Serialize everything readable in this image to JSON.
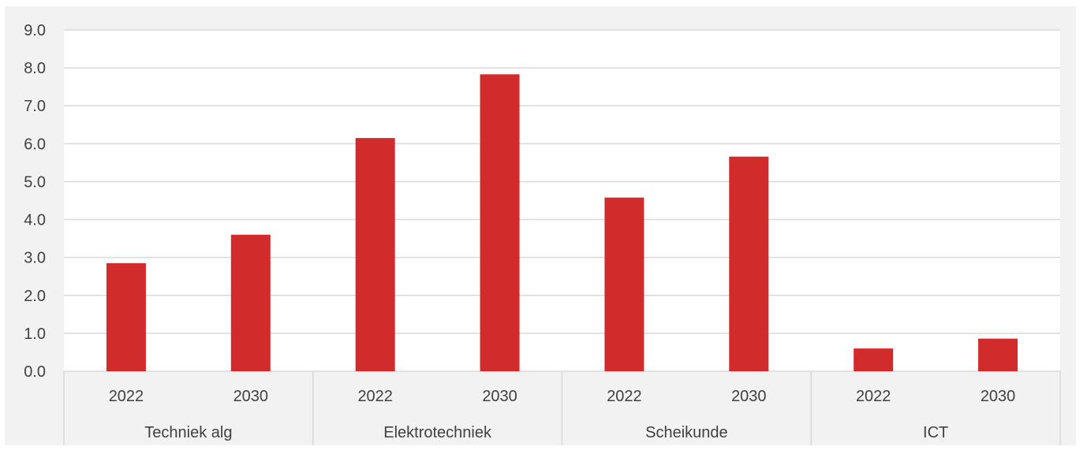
{
  "colors": {
    "background": "#f2f2f2",
    "plot_background": "#ffffff",
    "bar": "#d22b2b",
    "grid": "#d9d9d9",
    "text": "#404040"
  },
  "chart_data": {
    "type": "bar",
    "groups": [
      {
        "name": "Techniek alg",
        "categories": [
          "2022",
          "2030"
        ],
        "values": [
          2.85,
          3.6
        ]
      },
      {
        "name": "Elektrotechniek",
        "categories": [
          "2022",
          "2030"
        ],
        "values": [
          6.15,
          7.83
        ]
      },
      {
        "name": "Scheikunde",
        "categories": [
          "2022",
          "2030"
        ],
        "values": [
          4.58,
          5.66
        ]
      },
      {
        "name": "ICT",
        "categories": [
          "2022",
          "2030"
        ],
        "values": [
          0.6,
          0.86
        ]
      }
    ],
    "yticks": [
      "0.0",
      "1.0",
      "2.0",
      "3.0",
      "4.0",
      "5.0",
      "6.0",
      "7.0",
      "8.0",
      "9.0"
    ],
    "ylim": [
      0,
      9
    ],
    "grid": true,
    "title": "",
    "xlabel": "",
    "ylabel": ""
  }
}
